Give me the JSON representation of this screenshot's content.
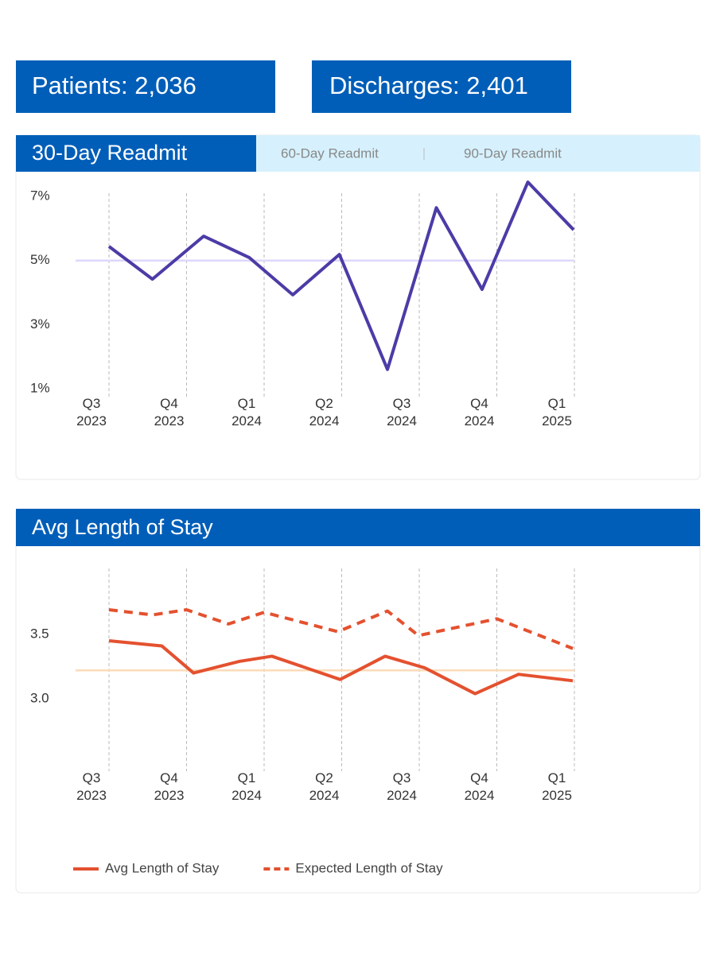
{
  "kpis": [
    "Patients: 2,036",
    "Discharges: 2,401"
  ],
  "tabs": [
    "30-Day Readmit",
    "60-Day Readmit",
    "90-Day Readmit"
  ],
  "chart_data": [
    {
      "type": "line",
      "xlim": [
        0,
        6
      ],
      "xticks": [
        {
          "value": 0,
          "label": "Q3 2023"
        },
        {
          "value": 1,
          "label": "Q4 2023"
        },
        {
          "value": 2,
          "label": "Q1 2024"
        },
        {
          "value": 3,
          "label": "Q2 2024"
        },
        {
          "value": 4,
          "label": "Q3 2024"
        },
        {
          "value": 5,
          "label": "Q4 2024"
        },
        {
          "value": 6,
          "label": "Q1 2025"
        }
      ],
      "ylim": [
        0.5,
        7.6
      ],
      "yticks": [
        {
          "value": 1,
          "label": "1%"
        },
        {
          "value": 3,
          "label": "3%"
        },
        {
          "value": 5,
          "label": "5%"
        },
        {
          "value": 7,
          "label": "7%"
        }
      ],
      "reference_line": 5,
      "reference_color": "#dcd8fb",
      "grid": true,
      "series": [
        {
          "color": "#4b3ca7",
          "dashed": false,
          "x": [
            0,
            0.56,
            1.22,
            1.81,
            2.37,
            2.97,
            3.59,
            4.22,
            4.81,
            5.4,
            5.99
          ],
          "values": [
            5.44,
            4.42,
            5.76,
            5.09,
            3.93,
            5.19,
            1.6,
            6.65,
            4.1,
            7.45,
            5.96
          ]
        }
      ]
    },
    {
      "type": "line",
      "title": "Avg Length of Stay",
      "xlim": [
        0,
        6
      ],
      "xticks": [
        {
          "value": 0,
          "label": "Q3 2023"
        },
        {
          "value": 1,
          "label": "Q4 2023"
        },
        {
          "value": 2,
          "label": "Q1 2024"
        },
        {
          "value": 3,
          "label": "Q2 2024"
        },
        {
          "value": 4,
          "label": "Q3 2024"
        },
        {
          "value": 5,
          "label": "Q4 2024"
        },
        {
          "value": 6,
          "label": "Q1 2025"
        }
      ],
      "ylim": [
        2.44,
        4.01
      ],
      "yticks": [
        {
          "value": 3,
          "label": "3.0"
        },
        3.5
      ],
      "reference_line": 3.22,
      "reference_color": "#fbdcb8",
      "grid": true,
      "legend": "bottom",
      "series": [
        {
          "name": "Avg Length of Stay",
          "color": "#e4512f",
          "dashed": false,
          "x": [
            0,
            0.68,
            1.09,
            1.68,
            2.1,
            2.98,
            3.56,
            4.07,
            4.72,
            5.28,
            5.98
          ],
          "values": [
            3.45,
            3.41,
            3.2,
            3.29,
            3.33,
            3.15,
            3.33,
            3.24,
            3.04,
            3.19,
            3.14
          ]
        },
        {
          "name": "Expected Length of Stay",
          "color": "#e4512f",
          "dashed": true,
          "x": [
            0,
            0.56,
            1.0,
            1.54,
            2.0,
            2.95,
            3.59,
            3.99,
            5.0,
            5.98
          ],
          "values": [
            3.69,
            3.65,
            3.69,
            3.58,
            3.67,
            3.52,
            3.68,
            3.49,
            3.62,
            3.39
          ]
        }
      ]
    }
  ]
}
